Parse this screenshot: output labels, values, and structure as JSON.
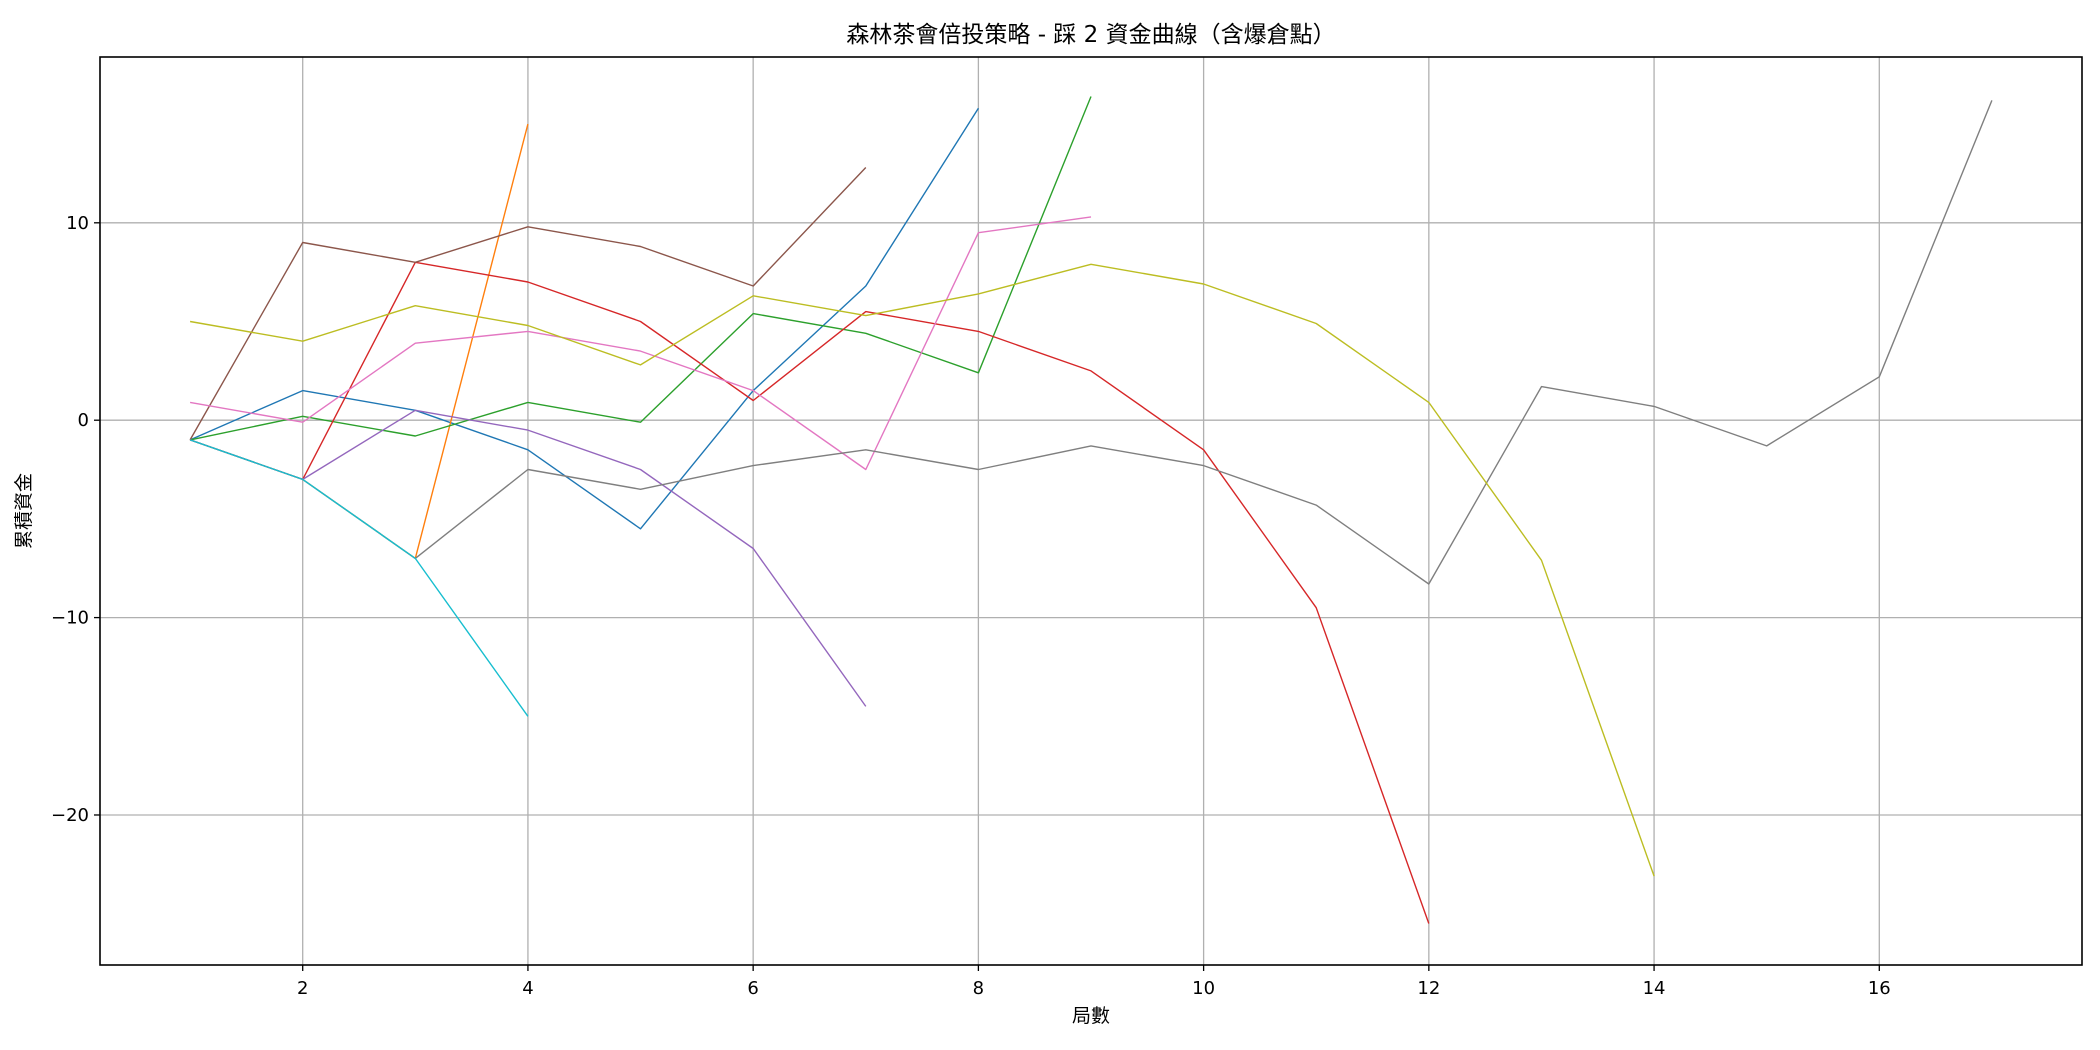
{
  "chart_data": {
    "type": "line",
    "title": "森林茶會倍投策略 - 踩 2 資金曲線（含爆倉點）",
    "xlabel": "局數",
    "ylabel": "累積資金",
    "xlim": [
      0.2,
      17.8
    ],
    "ylim": [
      -27.6,
      18.4
    ],
    "xticks": [
      2,
      4,
      6,
      8,
      10,
      12,
      14,
      16
    ],
    "yticks": [
      -20,
      -10,
      0,
      10
    ],
    "ytick_labels": [
      "−20",
      "−10",
      "0",
      "10"
    ],
    "grid": true,
    "series": [
      {
        "color": "#1f77b4",
        "x": [
          1,
          2,
          3,
          4,
          5,
          6,
          7,
          8
        ],
        "y": [
          -1,
          1.5,
          0.5,
          -1.5,
          -5.5,
          1.5,
          6.8,
          15.8
        ]
      },
      {
        "color": "#ff7f0e",
        "x": [
          1,
          2,
          3,
          4
        ],
        "y": [
          -1,
          -3,
          -7,
          15
        ]
      },
      {
        "color": "#2ca02c",
        "x": [
          1,
          2,
          3,
          4,
          5,
          6,
          7,
          8,
          9
        ],
        "y": [
          -1,
          0.2,
          -0.8,
          0.9,
          -0.1,
          5.4,
          4.4,
          2.4,
          16.4
        ]
      },
      {
        "color": "#d62728",
        "x": [
          1,
          2,
          3,
          4,
          5,
          6,
          7,
          8,
          9,
          10,
          11,
          12
        ],
        "y": [
          -1,
          -3,
          8,
          7,
          5,
          1,
          5.5,
          4.5,
          2.5,
          -1.5,
          -9.5,
          -25.5
        ]
      },
      {
        "color": "#9467bd",
        "x": [
          1,
          2,
          3,
          4,
          5,
          6,
          7
        ],
        "y": [
          -1,
          -3,
          0.5,
          -0.5,
          -2.5,
          -6.5,
          -14.5
        ]
      },
      {
        "color": "#8c564b",
        "x": [
          1,
          2,
          3,
          4,
          5,
          6,
          7
        ],
        "y": [
          -1,
          9,
          8,
          9.8,
          8.8,
          6.8,
          12.8
        ]
      },
      {
        "color": "#e377c2",
        "x": [
          1,
          2,
          3,
          4,
          5,
          6,
          7,
          8,
          9
        ],
        "y": [
          0.9,
          -0.1,
          3.9,
          4.5,
          3.5,
          1.5,
          -2.5,
          9.5,
          10.3
        ]
      },
      {
        "color": "#7f7f7f",
        "x": [
          1,
          2,
          3,
          4,
          5,
          6,
          7,
          8,
          9,
          10,
          11,
          12,
          13,
          14,
          15,
          16,
          17
        ],
        "y": [
          -1,
          -3,
          -7,
          -2.5,
          -3.5,
          -2.3,
          -1.5,
          -2.5,
          -1.3,
          -2.3,
          -4.3,
          -8.3,
          1.7,
          0.7,
          -1.3,
          2.2,
          16.2
        ]
      },
      {
        "color": "#bcbd22",
        "x": [
          1,
          2,
          3,
          4,
          5,
          6,
          7,
          8,
          9,
          10,
          11,
          12,
          13,
          14
        ],
        "y": [
          5,
          4,
          5.8,
          4.8,
          2.8,
          6.3,
          5.3,
          6.4,
          7.9,
          6.9,
          4.9,
          0.9,
          -7.1,
          -23.1
        ]
      },
      {
        "color": "#17becf",
        "x": [
          1,
          2,
          3,
          4
        ],
        "y": [
          -1,
          -3,
          -7,
          -15
        ]
      }
    ]
  }
}
